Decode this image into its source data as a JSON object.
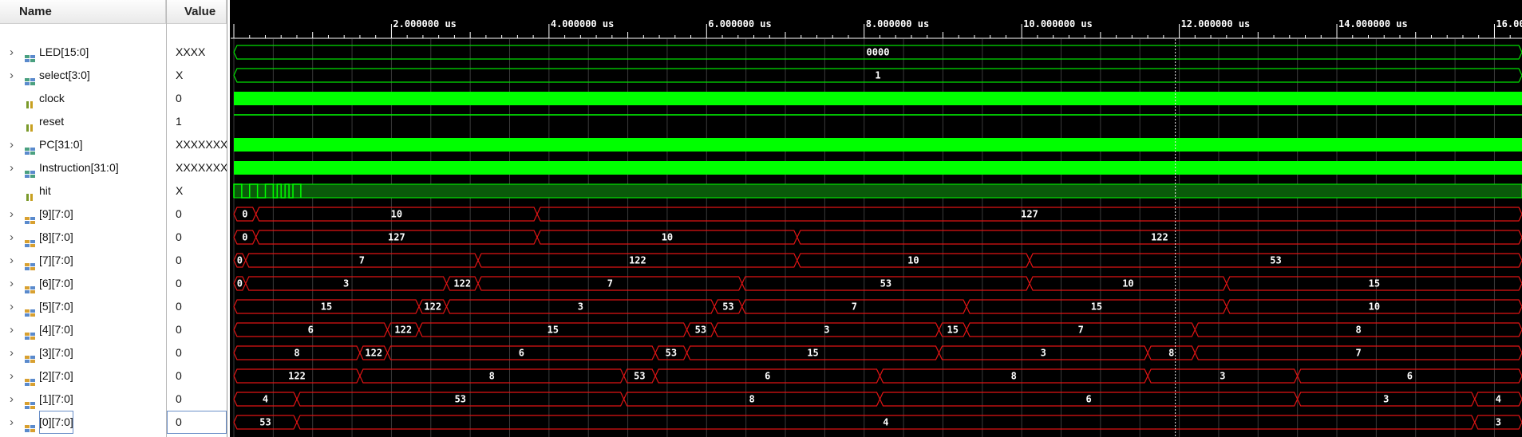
{
  "columns": {
    "name_header": "Name",
    "value_header": "Value"
  },
  "timeline": {
    "tick_labels": [
      "2.000000 us",
      "4.000000 us",
      "6.000000 us",
      "8.000000 us",
      "10.000000 us",
      "12.000000 us",
      "14.000000 us",
      "16.000000 us"
    ],
    "tick_label_us": [
      2,
      4,
      6,
      8,
      10,
      12,
      14,
      16
    ],
    "view_start_us": 0,
    "view_end_us": 16.35,
    "cursor_us": 11.95,
    "bus_color": "#00e000",
    "invalid_color": "#e01414",
    "bit_color": "#00ff00"
  },
  "signals": [
    {
      "name": "LED[15:0]",
      "value": "XXXX",
      "icon": "bus-icon",
      "expandable": true,
      "kind": "bus",
      "segments": [
        {
          "start": 0,
          "end": 16.35,
          "label": "0000"
        }
      ]
    },
    {
      "name": "select[3:0]",
      "value": "X",
      "icon": "bus-icon",
      "expandable": true,
      "kind": "bus",
      "segments": [
        {
          "start": 0,
          "end": 16.35,
          "label": "1"
        }
      ]
    },
    {
      "name": "clock",
      "value": "0",
      "icon": "bit-icon",
      "expandable": false,
      "kind": "solid"
    },
    {
      "name": "reset",
      "value": "1",
      "icon": "bit-icon",
      "expandable": false,
      "kind": "high"
    },
    {
      "name": "PC[31:0]",
      "value": "XXXXXXXX",
      "icon": "bus-icon",
      "expandable": true,
      "kind": "solid"
    },
    {
      "name": "Instruction[31:0]",
      "value": "XXXXXXXX",
      "icon": "bus-icon",
      "expandable": true,
      "kind": "solid"
    },
    {
      "name": "hit",
      "value": "X",
      "icon": "bit-icon",
      "expandable": false,
      "kind": "hit",
      "pulses": [
        [
          0.0,
          0.1
        ],
        [
          0.2,
          0.3
        ],
        [
          0.4,
          0.5
        ],
        [
          0.55,
          0.6
        ],
        [
          0.65,
          0.7
        ],
        [
          0.75,
          0.85
        ]
      ],
      "pulse_end": 0.85
    },
    {
      "name": "[9][7:0]",
      "value": "0",
      "icon": "array-icon",
      "expandable": true,
      "kind": "bus",
      "segments": [
        {
          "start": 0,
          "end": 0.28,
          "label": "0"
        },
        {
          "start": 0.28,
          "end": 3.85,
          "label": "10"
        },
        {
          "start": 3.85,
          "end": 16.35,
          "label": "127"
        }
      ]
    },
    {
      "name": "[8][7:0]",
      "value": "0",
      "icon": "array-icon",
      "expandable": true,
      "kind": "bus",
      "segments": [
        {
          "start": 0,
          "end": 0.28,
          "label": "0"
        },
        {
          "start": 0.28,
          "end": 3.85,
          "label": "127"
        },
        {
          "start": 3.85,
          "end": 7.15,
          "label": "10"
        },
        {
          "start": 7.15,
          "end": 16.35,
          "label": "122"
        }
      ]
    },
    {
      "name": "[7][7:0]",
      "value": "0",
      "icon": "array-icon",
      "expandable": true,
      "kind": "bus",
      "segments": [
        {
          "start": 0,
          "end": 0.15,
          "label": "0"
        },
        {
          "start": 0.15,
          "end": 3.1,
          "label": "7"
        },
        {
          "start": 3.1,
          "end": 7.15,
          "label": "122"
        },
        {
          "start": 7.15,
          "end": 10.1,
          "label": "10"
        },
        {
          "start": 10.1,
          "end": 16.35,
          "label": "53"
        }
      ]
    },
    {
      "name": "[6][7:0]",
      "value": "0",
      "icon": "array-icon",
      "expandable": true,
      "kind": "bus",
      "segments": [
        {
          "start": 0,
          "end": 0.15,
          "label": "0"
        },
        {
          "start": 0.15,
          "end": 2.7,
          "label": "3"
        },
        {
          "start": 2.7,
          "end": 3.1,
          "label": "122"
        },
        {
          "start": 3.1,
          "end": 6.45,
          "label": "7"
        },
        {
          "start": 6.45,
          "end": 10.1,
          "label": "53"
        },
        {
          "start": 10.1,
          "end": 12.6,
          "label": "10"
        },
        {
          "start": 12.6,
          "end": 16.35,
          "label": "15"
        }
      ]
    },
    {
      "name": "[5][7:0]",
      "value": "0",
      "icon": "array-icon",
      "expandable": true,
      "kind": "bus",
      "segments": [
        {
          "start": 0,
          "end": 2.35,
          "label": "15"
        },
        {
          "start": 2.35,
          "end": 2.7,
          "label": "122"
        },
        {
          "start": 2.7,
          "end": 6.1,
          "label": "3"
        },
        {
          "start": 6.1,
          "end": 6.45,
          "label": "53"
        },
        {
          "start": 6.45,
          "end": 9.3,
          "label": "7"
        },
        {
          "start": 9.3,
          "end": 12.6,
          "label": "15"
        },
        {
          "start": 12.6,
          "end": 16.35,
          "label": "10"
        }
      ]
    },
    {
      "name": "[4][7:0]",
      "value": "0",
      "icon": "array-icon",
      "expandable": true,
      "kind": "bus",
      "segments": [
        {
          "start": 0,
          "end": 1.95,
          "label": "6"
        },
        {
          "start": 1.95,
          "end": 2.35,
          "label": "122"
        },
        {
          "start": 2.35,
          "end": 5.75,
          "label": "15"
        },
        {
          "start": 5.75,
          "end": 6.1,
          "label": "53"
        },
        {
          "start": 6.1,
          "end": 8.95,
          "label": "3"
        },
        {
          "start": 8.95,
          "end": 9.3,
          "label": "15"
        },
        {
          "start": 9.3,
          "end": 12.2,
          "label": "7"
        },
        {
          "start": 12.2,
          "end": 16.35,
          "label": "8"
        }
      ]
    },
    {
      "name": "[3][7:0]",
      "value": "0",
      "icon": "array-icon",
      "expandable": true,
      "kind": "bus",
      "segments": [
        {
          "start": 0,
          "end": 1.6,
          "label": "8"
        },
        {
          "start": 1.6,
          "end": 1.95,
          "label": "122"
        },
        {
          "start": 1.95,
          "end": 5.35,
          "label": "6"
        },
        {
          "start": 5.35,
          "end": 5.75,
          "label": "53"
        },
        {
          "start": 5.75,
          "end": 8.95,
          "label": "15"
        },
        {
          "start": 8.95,
          "end": 11.6,
          "label": "3"
        },
        {
          "start": 11.6,
          "end": 12.2,
          "label": "8"
        },
        {
          "start": 12.2,
          "end": 16.35,
          "label": "7"
        }
      ]
    },
    {
      "name": "[2][7:0]",
      "value": "0",
      "icon": "array-icon",
      "expandable": true,
      "kind": "bus",
      "segments": [
        {
          "start": 0,
          "end": 1.6,
          "label": "122"
        },
        {
          "start": 1.6,
          "end": 4.95,
          "label": "8"
        },
        {
          "start": 4.95,
          "end": 5.35,
          "label": "53"
        },
        {
          "start": 5.35,
          "end": 8.2,
          "label": "6"
        },
        {
          "start": 8.2,
          "end": 11.6,
          "label": "8"
        },
        {
          "start": 11.6,
          "end": 13.5,
          "label": "3"
        },
        {
          "start": 13.5,
          "end": 16.35,
          "label": "6"
        }
      ]
    },
    {
      "name": "[1][7:0]",
      "value": "0",
      "icon": "array-icon",
      "expandable": true,
      "kind": "bus",
      "segments": [
        {
          "start": 0,
          "end": 0.8,
          "label": "4"
        },
        {
          "start": 0.8,
          "end": 4.95,
          "label": "53"
        },
        {
          "start": 4.95,
          "end": 8.2,
          "label": "8"
        },
        {
          "start": 8.2,
          "end": 13.5,
          "label": "6"
        },
        {
          "start": 13.5,
          "end": 15.75,
          "label": "3"
        },
        {
          "start": 15.75,
          "end": 16.35,
          "label": "4"
        }
      ]
    },
    {
      "name": "[0][7:0]",
      "value": "0",
      "icon": "array-icon",
      "expandable": true,
      "kind": "bus",
      "selected": true,
      "segments": [
        {
          "start": 0,
          "end": 0.8,
          "label": "53"
        },
        {
          "start": 0.8,
          "end": 15.75,
          "label": "4"
        },
        {
          "start": 15.75,
          "end": 16.35,
          "label": "3"
        }
      ]
    }
  ]
}
